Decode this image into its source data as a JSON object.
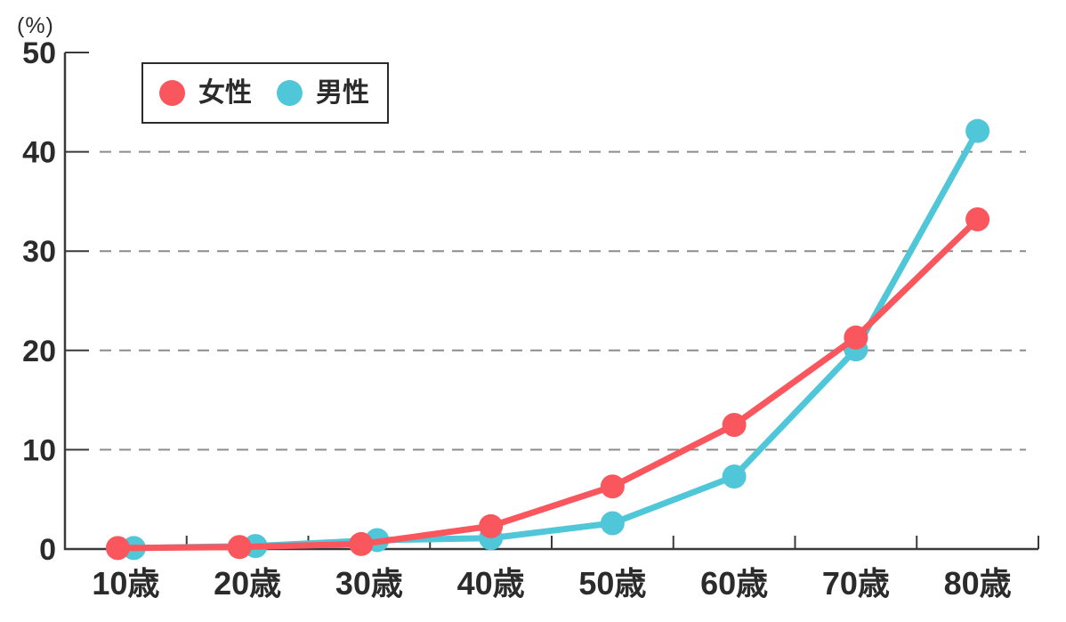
{
  "chart_data": {
    "type": "line",
    "title": "",
    "unit_label": "(%)",
    "categories": [
      "10歳",
      "20歳",
      "30歳",
      "40歳",
      "50歳",
      "60歳",
      "70歳",
      "80歳"
    ],
    "series": [
      {
        "name": "女性",
        "color": "#F9565D",
        "values": [
          0.1,
          0.2,
          0.5,
          2.3,
          6.3,
          12.5,
          21.3,
          33.2
        ]
      },
      {
        "name": "男性",
        "color": "#4FC7D8",
        "values": [
          0.1,
          0.3,
          0.9,
          1.1,
          2.6,
          7.3,
          20.1,
          42.1
        ]
      }
    ],
    "ylim": [
      0,
      50
    ],
    "yticks": [
      0,
      10,
      20,
      30,
      40,
      50
    ],
    "xlabel": "",
    "ylabel": "(%)",
    "grid": "horizontal-dashed",
    "legend_position": "top-left"
  },
  "colors": {
    "axis": "#3A3A3A",
    "grid": "#8C8C8C",
    "text": "#2B2B2B",
    "background": "#FFFFFF",
    "female": "#F9565D",
    "male": "#4FC7D8"
  }
}
